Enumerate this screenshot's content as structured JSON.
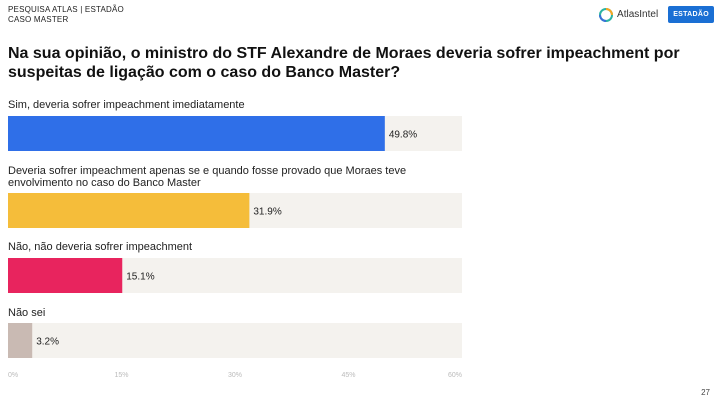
{
  "header": {
    "line1": "PESQUISA ATLAS | ESTADÃO",
    "line2": "CASO MASTER",
    "atlas_logo_text": "AtlasIntel",
    "estadao_badge": "ESTADÃO"
  },
  "colors": {
    "bar_track": "#f4f2ee",
    "estadao_blue": "#1a6fd4"
  },
  "page_number": "27",
  "chart_data": {
    "type": "bar",
    "orientation": "horizontal",
    "title": "Na sua opinião, o ministro do STF Alexandre de Moraes deveria sofrer impeachment por suspeitas de ligação com o caso do Banco Master?",
    "categories": [
      "Sim, deveria sofrer impeachment imediatamente",
      "Deveria sofrer impeachment apenas se e quando fosse provado que Moraes teve envolvimento no caso do Banco Master",
      "Não, não deveria sofrer impeachment",
      "Não sei"
    ],
    "category_lines": [
      [
        "Sim, deveria sofrer impeachment imediatamente"
      ],
      [
        "Deveria sofrer impeachment apenas se e quando fosse provado que Moraes teve",
        "envolvimento no caso do Banco Master"
      ],
      [
        "Não, não deveria sofrer impeachment"
      ],
      [
        "Não sei"
      ]
    ],
    "values": [
      49.8,
      31.9,
      15.1,
      3.2
    ],
    "value_labels": [
      "49.8%",
      "31.9%",
      "15.1%",
      "3.2%"
    ],
    "colors": [
      "#2f6fe8",
      "#f5bd3a",
      "#e8245e",
      "#c9bab3"
    ],
    "xlim": [
      0,
      60
    ],
    "xticks": [
      0,
      15,
      30,
      45,
      60
    ],
    "xtick_labels": [
      "0%",
      "15%",
      "30%",
      "45%",
      "60%"
    ],
    "grid": false,
    "legend": "none"
  }
}
